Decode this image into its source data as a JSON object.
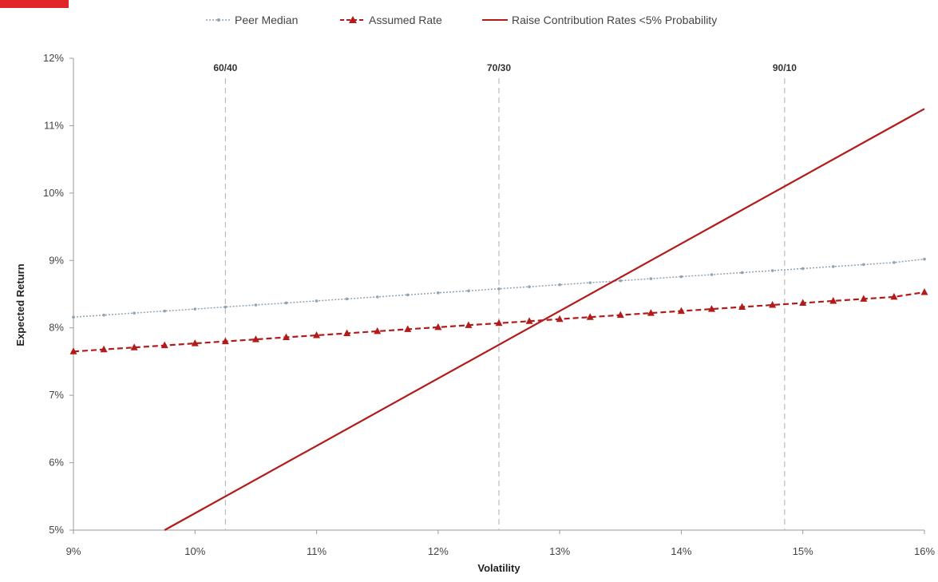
{
  "colors": {
    "peer_median": "#8fa3b3",
    "assumed_rate": "#b31b1b",
    "raise_contribution": "#b31b1b",
    "corner_mark": "#e0262b",
    "vlines": "#bbbbbb",
    "axis": "#999999"
  },
  "chart_data": {
    "type": "line",
    "title": "",
    "xlabel": "Volatility",
    "ylabel": "Expected Return",
    "xlim": [
      9,
      16
    ],
    "ylim": [
      5,
      12
    ],
    "x_ticks": [
      "9%",
      "10%",
      "11%",
      "12%",
      "13%",
      "14%",
      "15%",
      "16%"
    ],
    "y_ticks": [
      "5%",
      "6%",
      "7%",
      "8%",
      "9%",
      "10%",
      "11%",
      "12%"
    ],
    "grid": false,
    "legend_position": "top",
    "series": [
      {
        "name": "Peer Median",
        "style": "dotted-with-markers",
        "x": [
          9.0,
          9.25,
          9.5,
          9.75,
          10.0,
          10.25,
          10.5,
          10.75,
          11.0,
          11.25,
          11.5,
          11.75,
          12.0,
          12.25,
          12.5,
          12.75,
          13.0,
          13.25,
          13.5,
          13.75,
          14.0,
          14.25,
          14.5,
          14.75,
          15.0,
          15.25,
          15.5,
          15.75,
          16.0
        ],
        "y": [
          8.16,
          8.19,
          8.22,
          8.25,
          8.28,
          8.31,
          8.34,
          8.37,
          8.4,
          8.43,
          8.46,
          8.49,
          8.52,
          8.55,
          8.58,
          8.61,
          8.64,
          8.67,
          8.7,
          8.73,
          8.76,
          8.79,
          8.82,
          8.85,
          8.88,
          8.91,
          8.94,
          8.97,
          9.02
        ]
      },
      {
        "name": "Assumed Rate",
        "style": "dashed-with-triangles",
        "x": [
          9.0,
          9.25,
          9.5,
          9.75,
          10.0,
          10.25,
          10.5,
          10.75,
          11.0,
          11.25,
          11.5,
          11.75,
          12.0,
          12.25,
          12.5,
          12.75,
          13.0,
          13.25,
          13.5,
          13.75,
          14.0,
          14.25,
          14.5,
          14.75,
          15.0,
          15.25,
          15.5,
          15.75,
          16.0
        ],
        "y": [
          7.65,
          7.68,
          7.71,
          7.74,
          7.77,
          7.8,
          7.83,
          7.86,
          7.89,
          7.92,
          7.95,
          7.98,
          8.01,
          8.04,
          8.07,
          8.1,
          8.13,
          8.16,
          8.19,
          8.22,
          8.25,
          8.28,
          8.31,
          8.34,
          8.37,
          8.4,
          8.43,
          8.46,
          8.53
        ]
      },
      {
        "name": "Raise Contribution Rates <5% Probability",
        "style": "solid",
        "x": [
          9.75,
          16.0
        ],
        "y": [
          5.0,
          11.25
        ]
      }
    ],
    "vertical_lines": [
      {
        "x": 10.25,
        "label": "60/40"
      },
      {
        "x": 12.5,
        "label": "70/30"
      },
      {
        "x": 14.85,
        "label": "90/10"
      }
    ]
  }
}
